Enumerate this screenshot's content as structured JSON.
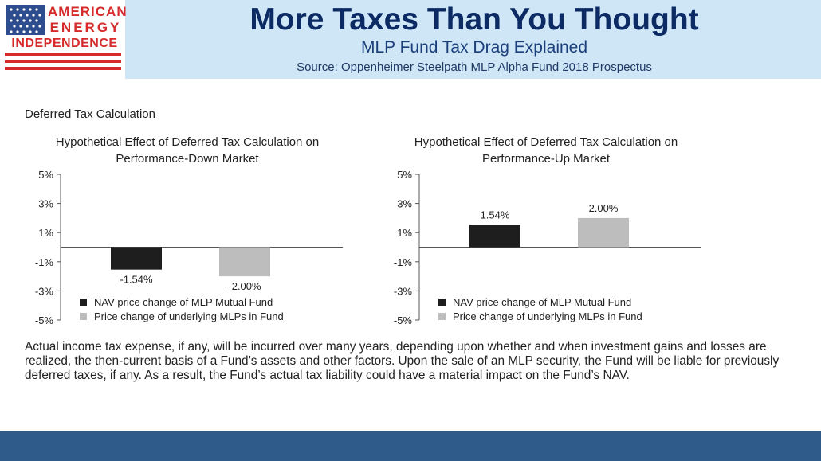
{
  "header": {
    "logo_lines": [
      "AMERICAN",
      "ENERGY",
      "INDEPENDENCE"
    ],
    "title": "More Taxes Than You Thought",
    "subtitle": "MLP Fund Tax Drag Explained",
    "source": "Source: Oppenheimer Steelpath MLP Alpha Fund 2018 Prospectus"
  },
  "section_label": "Deferred Tax Calculation",
  "body_text": "Actual income tax expense, if any, will be incurred over many years, depending upon whether and when investment gains and losses are realized, the then-current basis of a Fund’s assets and other factors. Upon the sale of an MLP security, the Fund will be liable for previously deferred taxes, if any. As a result, the Fund’s actual tax liability could have a material impact on the Fund’s NAV.",
  "colors": {
    "header_band": "#cfe6f6",
    "title": "#0c2a63",
    "logo_red": "#d62b2b",
    "logo_blue": "#2e4d8e",
    "series_nav": "#1e1e1e",
    "series_mlp": "#bdbdbd",
    "footer": "#2f5b8a"
  },
  "chart_data": [
    {
      "type": "bar",
      "title_lines": [
        "Hypothetical Effect of Deferred Tax Calculation on",
        "Performance-Down Market"
      ],
      "categories": [
        "NAV price change of MLP Mutual Fund",
        "Price change of underlying MLPs in Fund"
      ],
      "values": [
        -1.54,
        -2.0
      ],
      "value_labels": [
        "-1.54%",
        "-2.00%"
      ],
      "yticks": [
        "5%",
        "3%",
        "1%",
        "-1%",
        "-3%",
        "-5%"
      ],
      "ylim": [
        -5,
        5
      ],
      "legend": [
        {
          "label": "NAV price change of MLP Mutual Fund",
          "color": "#1e1e1e"
        },
        {
          "label": "Price change of underlying MLPs in Fund",
          "color": "#bdbdbd"
        }
      ],
      "legend_position": "bottom-left"
    },
    {
      "type": "bar",
      "title_lines": [
        "Hypothetical Effect of Deferred Tax Calculation on",
        "Performance-Up Market"
      ],
      "categories": [
        "NAV price change of MLP Mutual Fund",
        "Price change of underlying MLPs in Fund"
      ],
      "values": [
        1.54,
        2.0
      ],
      "value_labels": [
        "1.54%",
        "2.00%"
      ],
      "yticks": [
        "5%",
        "3%",
        "1%",
        "-1%",
        "-3%",
        "-5%"
      ],
      "ylim": [
        -5,
        5
      ],
      "legend": [
        {
          "label": "NAV price change of MLP Mutual Fund",
          "color": "#1e1e1e"
        },
        {
          "label": "Price change of underlying MLPs in Fund",
          "color": "#bdbdbd"
        }
      ],
      "legend_position": "bottom-left"
    }
  ]
}
